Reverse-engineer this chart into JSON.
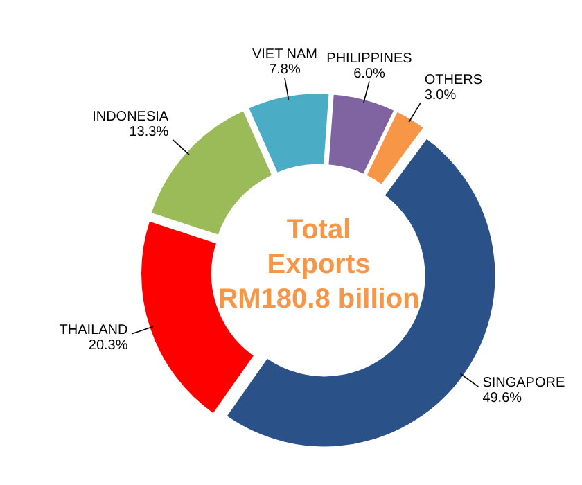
{
  "chart_data": {
    "type": "donut",
    "title": "Total Exports RM180.8 billion",
    "categories": [
      "SINGAPORE",
      "THAILAND",
      "INDONESIA",
      "VIET NAM",
      "PHILIPPINES",
      "OTHERS"
    ],
    "values": [
      49.6,
      20.3,
      13.3,
      7.8,
      6.0,
      3.0
    ],
    "value_labels": [
      "49.6%",
      "20.3%",
      "13.3%",
      "7.8%",
      "6.0%",
      "3.0%"
    ],
    "colors": [
      "#2a5289",
      "#ff0000",
      "#9bbb59",
      "#4bacc6",
      "#8064a2",
      "#f79646"
    ]
  }
}
